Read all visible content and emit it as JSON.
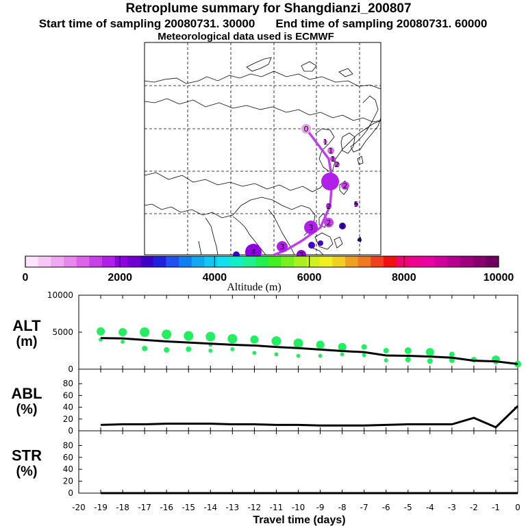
{
  "header": {
    "title": "Retroplume summary for Shangdianzi_200807",
    "start_label": "Start time of sampling 20080731. 30000",
    "end_label": "End time of sampling 20080731. 60000",
    "met_label": "Meteorological data used is ECMWF"
  },
  "colorbar": {
    "ticks": [
      "0",
      "2000",
      "4000",
      "6000",
      "8000",
      "10000"
    ],
    "title": "Altitude (m)",
    "colors": [
      "#fce4fc",
      "#f7c8f7",
      "#f0a8f0",
      "#e888ec",
      "#dc64e8",
      "#c840e8",
      "#b020e8",
      "#9000e0",
      "#7000d0",
      "#4000c8",
      "#2020e0",
      "#2050f0",
      "#1080f0",
      "#10a8f0",
      "#10c8f0",
      "#10e0f0",
      "#10f0c8",
      "#20f090",
      "#20f050",
      "#40f020",
      "#78f020",
      "#a8f020",
      "#d0f020",
      "#f0f020",
      "#f0d020",
      "#f0a020",
      "#f07820",
      "#f04020",
      "#f01010",
      "#f00070",
      "#f00090",
      "#e800a0",
      "#d000a0",
      "#b80090",
      "#a00080",
      "#880070",
      "#700060"
    ]
  },
  "map": {
    "plume_labels": [
      "0",
      "1",
      "1",
      "1",
      "2",
      "2",
      "2",
      "2",
      "3",
      "3",
      "3",
      "4",
      "4",
      "4",
      "5"
    ]
  },
  "chart_data": [
    {
      "type": "scatter",
      "name": "ALT",
      "ylabel": "ALT\n(m)",
      "ylabel_line1": "ALT",
      "ylabel_line2": "(m)",
      "ylim": [
        0,
        10000
      ],
      "yticks": [
        "10000",
        "5000",
        "0"
      ],
      "xlim": [
        -20,
        0
      ],
      "line": {
        "x": [
          -19,
          -18,
          -17,
          -16,
          -15,
          -14,
          -13,
          -12,
          -11,
          -10,
          -9,
          -8,
          -7,
          -6,
          -5,
          -4,
          -3,
          -2,
          -1,
          0
        ],
        "y": [
          4200,
          4150,
          3950,
          3750,
          3600,
          3450,
          3300,
          3200,
          3000,
          2850,
          2650,
          2450,
          2300,
          1850,
          1800,
          1700,
          1550,
          1150,
          1050,
          700
        ]
      },
      "points": {
        "x": [
          -19,
          -19,
          -18,
          -18,
          -17,
          -17,
          -16,
          -16,
          -15,
          -15,
          -14,
          -14,
          -14,
          -13,
          -13,
          -12,
          -12,
          -11,
          -11,
          -10,
          -10,
          -9,
          -9,
          -8,
          -8,
          -7,
          -7,
          -6,
          -6,
          -5,
          -5,
          -4,
          -4,
          -3,
          -3,
          -2,
          -1,
          -1,
          0
        ],
        "y": [
          5100,
          4000,
          5000,
          3700,
          5000,
          2800,
          4700,
          2600,
          4500,
          2700,
          4400,
          3300,
          2500,
          4100,
          2700,
          4000,
          2200,
          3800,
          2000,
          3500,
          1800,
          3300,
          1800,
          3000,
          2000,
          3000,
          1900,
          2500,
          1200,
          2500,
          1300,
          2300,
          1100,
          2000,
          1200,
          1300,
          1300,
          900,
          700
        ],
        "r": [
          6,
          3,
          6,
          3,
          7,
          4,
          7,
          4,
          7,
          4,
          7,
          3,
          3,
          7,
          3,
          6,
          3,
          7,
          3,
          7,
          3,
          6,
          3,
          6,
          3,
          4,
          3,
          4,
          3,
          5,
          4,
          6,
          4,
          4,
          4,
          4,
          6,
          3,
          5
        ]
      }
    },
    {
      "type": "line",
      "name": "ABL",
      "ylabel": "ABL\n(%)",
      "ylabel_line1": "ABL",
      "ylabel_line2": "(%)",
      "ylim": [
        0,
        100
      ],
      "yticks": [
        "80",
        "60",
        "40",
        "20",
        "0"
      ],
      "x": [
        -19,
        -18,
        -17,
        -16,
        -15,
        -14,
        -13,
        -12,
        -11,
        -10,
        -9,
        -8,
        -7,
        -6,
        -5,
        -4,
        -3,
        -2,
        -1,
        0
      ],
      "y": [
        10,
        11,
        11,
        12,
        12,
        12,
        11,
        11,
        10,
        10,
        9,
        9,
        9,
        10,
        11,
        11,
        11,
        22,
        6,
        42
      ]
    },
    {
      "type": "line",
      "name": "STR",
      "ylabel": "STR\n(%)",
      "ylabel_line1": "STR",
      "ylabel_line2": "(%)",
      "ylim": [
        0,
        100
      ],
      "yticks": [
        "80",
        "60",
        "40",
        "20",
        "0"
      ],
      "x": [
        -19,
        -18,
        -17,
        -16,
        -15,
        -14,
        -13,
        -12,
        -11,
        -10,
        -9,
        -8,
        -7,
        -6,
        -5,
        -4,
        -3,
        -2,
        -1,
        0
      ],
      "y": [
        0,
        0,
        0,
        0,
        0,
        0,
        0,
        0,
        0,
        0,
        0,
        0,
        0,
        0,
        0,
        0,
        0,
        0,
        0,
        0
      ]
    }
  ],
  "xaxis": {
    "ticks": [
      "-20",
      "-19",
      "-18",
      "-17",
      "-16",
      "-15",
      "-14",
      "-13",
      "-12",
      "-11",
      "-10",
      "-9",
      "-8",
      "-7",
      "-6",
      "-5",
      "-4",
      "-3",
      "-2",
      "-1",
      "0"
    ],
    "label": "Travel time (days)"
  }
}
